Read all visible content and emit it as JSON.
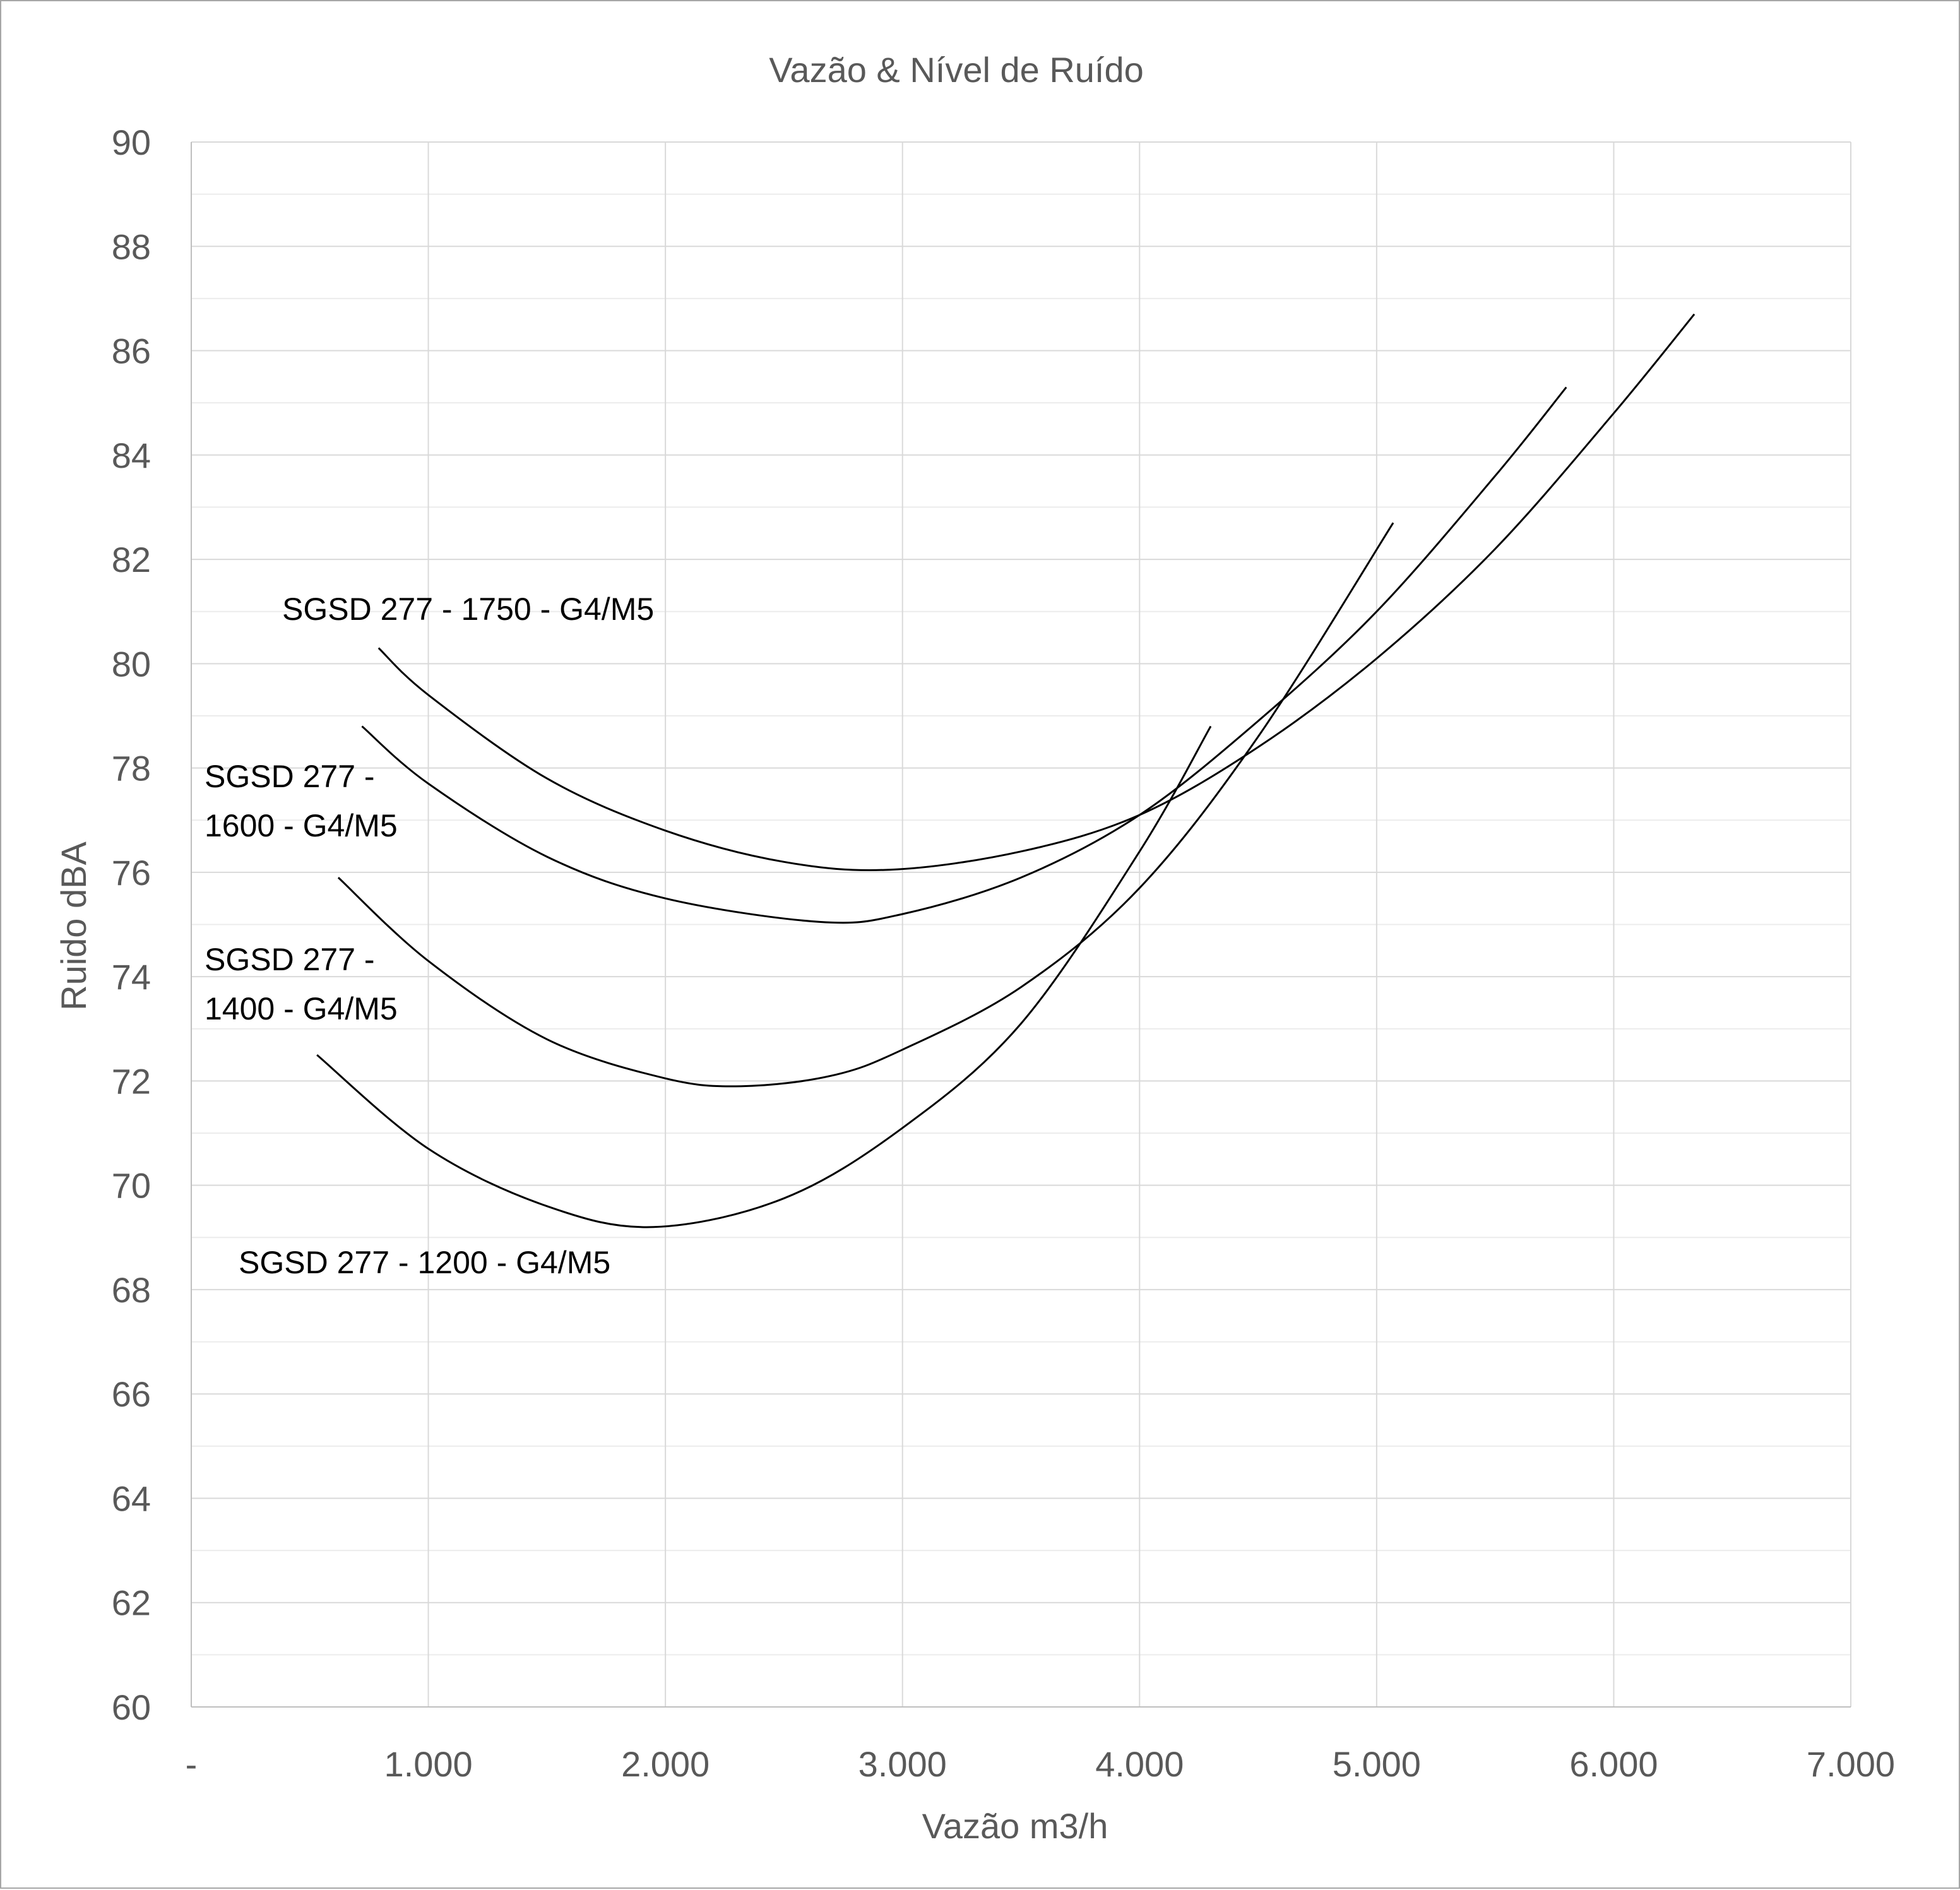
{
  "chart_data": {
    "type": "line",
    "title": "Vazão & Nível de Ruído",
    "xlabel": "Vazão m3/h",
    "ylabel": "Ruido dBA",
    "xlim": [
      0,
      7000
    ],
    "ylim": [
      60,
      90
    ],
    "x_ticks": [
      0,
      1000,
      2000,
      3000,
      4000,
      5000,
      6000,
      7000
    ],
    "x_tick_labels": [
      "-",
      "1.000",
      "2.000",
      "3.000",
      "4.000",
      "5.000",
      "6.000",
      "7.000"
    ],
    "y_ticks": [
      60,
      62,
      64,
      66,
      68,
      70,
      72,
      74,
      76,
      78,
      80,
      82,
      84,
      86,
      88,
      90
    ],
    "y_tick_labels": [
      "60",
      "62",
      "64",
      "66",
      "68",
      "70",
      "72",
      "74",
      "76",
      "78",
      "80",
      "82",
      "84",
      "86",
      "88",
      "90"
    ],
    "y_minor_step": 1,
    "grid": true,
    "legend": "none",
    "series": [
      {
        "name": "SGSD 277 - 1750 - G4/M5",
        "label_lines": [
          "SGSD 277 - 1750 - G4/M5"
        ],
        "x": [
          790,
          1000,
          1500,
          2000,
          2500,
          2950,
          3500,
          4000,
          4500,
          5000,
          5500,
          6000,
          6340
        ],
        "y": [
          80.3,
          79.4,
          77.8,
          76.8,
          76.2,
          76.05,
          76.4,
          77.1,
          78.4,
          80.1,
          82.2,
          84.8,
          86.7
        ]
      },
      {
        "name": "SGSD 277 - 1600 - G4/M5",
        "label_lines": [
          "SGSD 277 -",
          "1600 - G4/M5"
        ],
        "x": [
          720,
          1000,
          1500,
          2000,
          2650,
          3000,
          3500,
          4000,
          4500,
          5000,
          5500,
          5800
        ],
        "y": [
          78.8,
          77.7,
          76.3,
          75.5,
          75.05,
          75.2,
          75.9,
          77.1,
          78.9,
          81.0,
          83.6,
          85.3
        ]
      },
      {
        "name": "SGSD 277 - 1400 - G4/M5",
        "label_lines": [
          "SGSD 277 -",
          "1400 - G4/M5"
        ],
        "x": [
          620,
          1000,
          1500,
          2000,
          2320,
          2700,
          3000,
          3500,
          4000,
          4500,
          5070
        ],
        "y": [
          75.9,
          74.3,
          72.8,
          72.05,
          71.9,
          72.1,
          72.6,
          73.8,
          75.7,
          78.6,
          82.7
        ]
      },
      {
        "name": "SGSD 277 - 1200 - G4/M5",
        "label_lines": [
          "SGSD 277 - 1200 - G4/M5"
        ],
        "x": [
          530,
          1000,
          1500,
          1950,
          2500,
          3000,
          3500,
          4000,
          4300
        ],
        "y": [
          72.5,
          70.7,
          69.6,
          69.2,
          69.75,
          71.1,
          73.1,
          76.4,
          78.8
        ]
      }
    ]
  }
}
